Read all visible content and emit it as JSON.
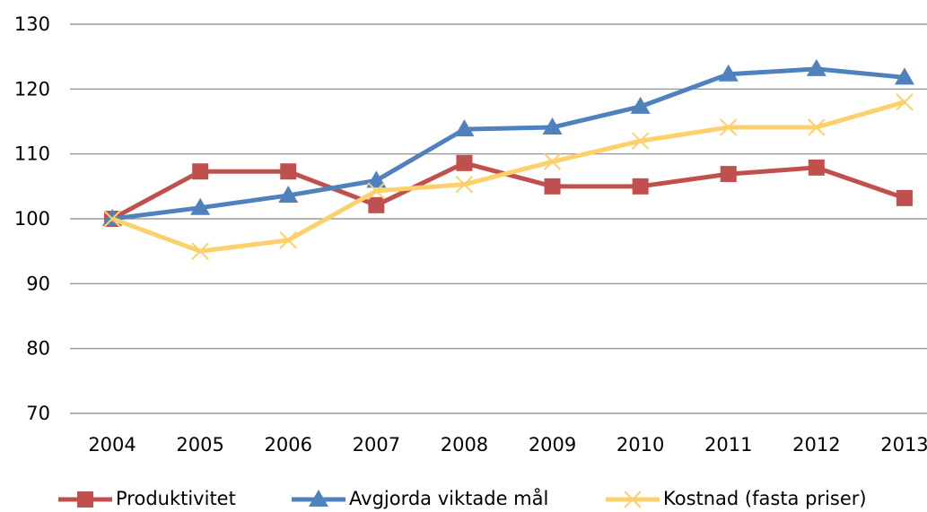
{
  "chart_data": {
    "type": "line",
    "categories": [
      "2004",
      "2005",
      "2006",
      "2007",
      "2008",
      "2009",
      "2010",
      "2011",
      "2012",
      "2013"
    ],
    "series": [
      {
        "name": "Produktivitet",
        "color": "#c0504d",
        "marker": "square",
        "values": [
          100,
          107.3,
          107.3,
          102.1,
          108.6,
          105.0,
          105.0,
          106.9,
          107.9,
          103.2
        ]
      },
      {
        "name": "Avgjorda viktade mål",
        "color": "#4f81bd",
        "marker": "triangle",
        "values": [
          100,
          101.7,
          103.6,
          105.9,
          113.8,
          114.1,
          117.3,
          122.3,
          123.1,
          121.8
        ]
      },
      {
        "name": "Kostnad (fasta priser)",
        "color": "#fcd06a",
        "marker": "x",
        "values": [
          100,
          95.0,
          96.7,
          104.3,
          105.3,
          108.8,
          112.0,
          114.1,
          114.1,
          118.0
        ]
      }
    ],
    "ylim": [
      70,
      130
    ],
    "yticks": [
      70,
      80,
      90,
      100,
      110,
      120,
      130
    ],
    "grid": true,
    "legend": "bottom"
  }
}
